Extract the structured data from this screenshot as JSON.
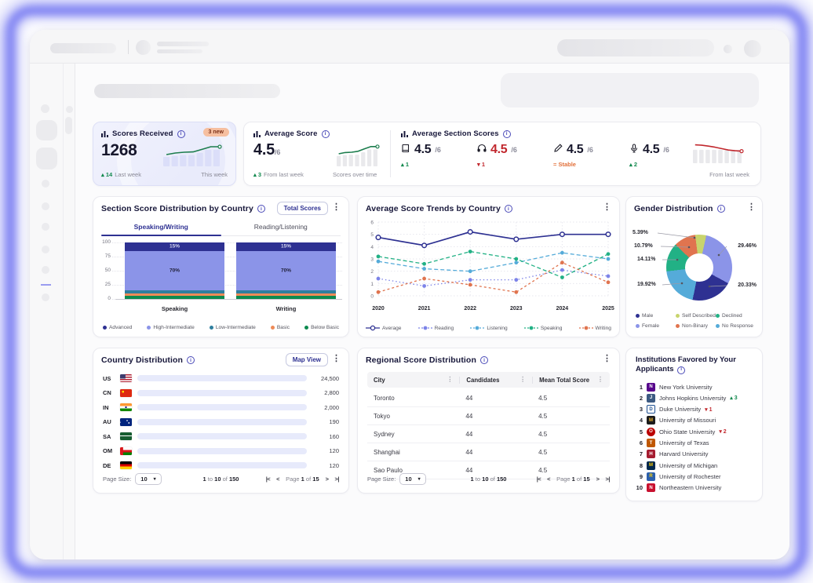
{
  "colors": {
    "navy": "#2e3192",
    "periwinkle": "#8b94e8",
    "teal": "#2f7f9e",
    "orange": "#ee8a57",
    "green": "#0d8a4f",
    "lightblue": "#55abd9",
    "emerald": "#22b185",
    "yellowgreen": "#c8d46d",
    "slice_orange": "#e0744f",
    "red": "#c1272d",
    "positive": "#12894e",
    "stable": "#e2703a",
    "spark_green": "#1c7d4d",
    "lavender_bar": "#dbdef9",
    "gray_bar": "#e9e9ec"
  },
  "stats": {
    "scores_received": {
      "title": "Scores Received",
      "badge": "3 new",
      "value": "1268",
      "delta": {
        "dir": "up",
        "value": "14"
      },
      "delta_label": "Last week",
      "spark_label": "This week",
      "spark_bars": [
        0.5,
        0.55,
        0.6,
        0.6,
        0.72,
        0.88,
        0.88
      ],
      "spark_line": [
        0.45,
        0.55,
        0.6,
        0.62,
        0.78,
        0.95,
        0.95
      ]
    },
    "average_score": {
      "title": "Average Score",
      "value": "4.5",
      "denom": "/6",
      "delta": {
        "dir": "up",
        "value": "3"
      },
      "delta_label": "From last week",
      "spark_label": "Scores over time",
      "spark_bars": [
        0.55,
        0.6,
        0.62,
        0.62,
        0.75,
        0.9,
        0.9
      ],
      "spark_line": [
        0.5,
        0.58,
        0.6,
        0.66,
        0.82,
        0.96,
        0.96
      ]
    },
    "section_scores": {
      "title": "Average Section Scores",
      "spark_label": "From last week",
      "items": [
        {
          "icon": "book-icon",
          "section": "reading",
          "value": "4.5",
          "denom": "/6",
          "highlight": false,
          "delta": {
            "dir": "up",
            "value": "1"
          }
        },
        {
          "icon": "headphones-icon",
          "section": "listening",
          "value": "4.5",
          "denom": "/6",
          "highlight": true,
          "delta": {
            "dir": "down",
            "value": "1"
          }
        },
        {
          "icon": "pencil-icon",
          "section": "writing",
          "value": "4.5",
          "denom": "/6",
          "highlight": false,
          "delta": {
            "dir": "stable",
            "value": "Stable"
          }
        },
        {
          "icon": "microphone-icon",
          "section": "speaking",
          "value": "4.5",
          "denom": "/6",
          "highlight": false,
          "delta": {
            "dir": "up",
            "value": "2"
          }
        }
      ],
      "spark_bars": [
        0.78,
        0.78,
        0.78,
        0.78,
        0.78,
        0.78,
        0.78,
        0.78
      ],
      "spark_line": [
        0.97,
        0.94,
        0.88,
        0.8,
        0.7,
        0.6,
        0.55,
        0.52
      ]
    }
  },
  "section_distribution": {
    "title": "Section Score Distribution by Country",
    "button": "Total Scores",
    "tabs": [
      {
        "label": "Speaking/Writing",
        "active": true
      },
      {
        "label": "Reading/Listening",
        "active": false
      }
    ],
    "y_ticks": [
      "100",
      "75",
      "50",
      "25",
      "0"
    ]
  },
  "score_trends": {
    "title": "Average Score Trends by Country"
  },
  "gender": {
    "title": "Gender Distribution",
    "legend_order": [
      "Male",
      "Female",
      "Self Described",
      "Non-Binary",
      "Declined",
      "No Response"
    ]
  },
  "country_distribution": {
    "title": "Country Distribution",
    "button": "Map View"
  },
  "regional_scores": {
    "title": "Regional Score Distribution"
  },
  "institutions": {
    "title": "Institutions Favored by Your Applicants",
    "items": [
      {
        "rank": "1",
        "name": "New York University",
        "logo": {
          "bg": "#57068c",
          "fg": "#ffffff",
          "text": "N"
        },
        "delta": null
      },
      {
        "rank": "2",
        "name": "Johns Hopkins University",
        "logo": {
          "bg": "#3c5a82",
          "fg": "#ffffff",
          "text": "J"
        },
        "delta": {
          "dir": "up",
          "value": "3"
        }
      },
      {
        "rank": "3",
        "name": "Duke University",
        "logo": {
          "bg": "#ffffff",
          "fg": "#1d4f91",
          "text": "D",
          "border": "#1d4f91"
        },
        "delta": {
          "dir": "down",
          "value": "1"
        }
      },
      {
        "rank": "4",
        "name": "University of Missouri",
        "logo": {
          "bg": "#1b1b1b",
          "fg": "#f1b82d",
          "text": "M"
        },
        "delta": null
      },
      {
        "rank": "5",
        "name": "Ohio State University",
        "logo": {
          "bg": "#bb0000",
          "fg": "#ffffff",
          "text": "O",
          "round": true
        },
        "delta": {
          "dir": "down",
          "value": "2"
        }
      },
      {
        "rank": "6",
        "name": "University of Texas",
        "logo": {
          "bg": "#bf5700",
          "fg": "#ffffff",
          "text": "T"
        },
        "delta": null
      },
      {
        "rank": "7",
        "name": "Harvard University",
        "logo": {
          "bg": "#a51c30",
          "fg": "#ffffff",
          "text": "H"
        },
        "delta": null
      },
      {
        "rank": "8",
        "name": "University of Michigan",
        "logo": {
          "bg": "#00274c",
          "fg": "#ffcb05",
          "text": "M"
        },
        "delta": null
      },
      {
        "rank": "9",
        "name": "University of Rochester",
        "logo": {
          "bg": "#2b5fac",
          "fg": "#ffd408",
          "text": "R"
        },
        "delta": null
      },
      {
        "rank": "10",
        "name": "Northeastern University",
        "logo": {
          "bg": "#c8102e",
          "fg": "#ffffff",
          "text": "N"
        },
        "delta": null
      }
    ]
  },
  "pagination": {
    "page_size_label": "Page Size:",
    "page_size": "10",
    "range": {
      "from": "1",
      "to_word": "to",
      "to": "10",
      "of_word": "of",
      "total": "150"
    },
    "page": {
      "word": "Page",
      "current": "1",
      "of_word": "of",
      "last": "15"
    }
  },
  "chart_data": [
    {
      "id": "section_distribution",
      "type": "bar",
      "stacked": true,
      "title": "Section Score Distribution by Country",
      "categories": [
        "Speaking",
        "Writing"
      ],
      "ylim": [
        0,
        100
      ],
      "y_ticks": [
        100,
        75,
        50,
        25,
        0
      ],
      "series": [
        {
          "name": "Below Basic",
          "color": "#0d8a4f",
          "values": [
            5,
            5
          ],
          "show_label": false
        },
        {
          "name": "Basic",
          "color": "#ee8a57",
          "values": [
            5,
            5
          ],
          "show_label": false
        },
        {
          "name": "Low-Intermediate",
          "color": "#2f7f9e",
          "values": [
            5,
            5
          ],
          "show_label": false
        },
        {
          "name": "High-Intermediate",
          "color": "#8b94e8",
          "values": [
            70,
            70
          ],
          "show_label": true,
          "label_color": "#1d1d35"
        },
        {
          "name": "Advanced",
          "color": "#2e3192",
          "values": [
            15,
            15
          ],
          "show_label": true,
          "label_color": "#d6d8f0"
        }
      ],
      "legend": [
        "Advanced",
        "High-Intermediate",
        "Low-Intermediate",
        "Basic",
        "Below Basic"
      ]
    },
    {
      "id": "score_trends",
      "type": "line",
      "title": "Average Score Trends by Country",
      "x": [
        "2020",
        "2021",
        "2022",
        "2023",
        "2024",
        "2025"
      ],
      "ylim": [
        0,
        6
      ],
      "y_ticks": [
        0,
        1,
        2,
        3,
        4,
        5,
        6
      ],
      "grid": true,
      "legend_position": "bottom",
      "series": [
        {
          "name": "Average",
          "color": "#2e3192",
          "dash": "",
          "marker": "open",
          "values": [
            4.75,
            4.1,
            5.2,
            4.6,
            5.0,
            5.0
          ]
        },
        {
          "name": "Reading",
          "color": "#7c83e8",
          "dash": "1.5 3",
          "marker": "filled",
          "values": [
            1.4,
            0.8,
            1.3,
            1.3,
            2.1,
            1.6
          ]
        },
        {
          "name": "Listening",
          "color": "#55abd9",
          "dash": "5 3",
          "marker": "filled",
          "values": [
            2.8,
            2.2,
            2.0,
            2.7,
            3.5,
            3.0
          ]
        },
        {
          "name": "Speaking",
          "color": "#22b185",
          "dash": "5 3",
          "marker": "filled",
          "values": [
            3.2,
            2.6,
            3.6,
            3.0,
            1.5,
            3.4
          ]
        },
        {
          "name": "Writing",
          "color": "#e0744f",
          "dash": "3 3",
          "marker": "filled",
          "values": [
            0.3,
            1.4,
            0.9,
            0.3,
            2.7,
            1.1
          ]
        }
      ]
    },
    {
      "id": "gender",
      "type": "pie",
      "title": "Gender Distribution",
      "donut": true,
      "start_angle": -7,
      "slices": [
        {
          "label": "Self Described",
          "pct": 5.39,
          "display": "5.39%",
          "color": "#c8d46d"
        },
        {
          "label": "Female",
          "pct": 29.46,
          "display": "29.46%",
          "color": "#8b94e8"
        },
        {
          "label": "Male",
          "pct": 20.33,
          "display": "20.33%",
          "color": "#2e3192"
        },
        {
          "label": "No Response",
          "pct": 19.92,
          "display": "19.92%",
          "color": "#55abd9"
        },
        {
          "label": "Declined",
          "pct": 14.11,
          "display": "14.11%",
          "color": "#22b185"
        },
        {
          "label": "Non-Binary",
          "pct": 10.79,
          "display": "10.79%",
          "color": "#e0744f"
        }
      ]
    },
    {
      "id": "country_distribution",
      "type": "bar",
      "orientation": "horizontal",
      "title": "Country Distribution",
      "categories": [
        "US",
        "CN",
        "IN",
        "AU",
        "SA",
        "OM",
        "DE"
      ],
      "values": [
        "24,500",
        "2,800",
        "2,000",
        "190",
        "160",
        "120",
        "120"
      ],
      "bar_pct": [
        100,
        63,
        52,
        21,
        15,
        9,
        9
      ]
    },
    {
      "id": "regional_scores",
      "type": "table",
      "title": "Regional Score Distribution",
      "columns": [
        "City",
        "Candidates",
        "Mean Total Score"
      ],
      "rows": [
        [
          "Toronto",
          "44",
          "4.5"
        ],
        [
          "Tokyo",
          "44",
          "4.5"
        ],
        [
          "Sydney",
          "44",
          "4.5"
        ],
        [
          "Shanghai",
          "44",
          "4.5"
        ],
        [
          "Sao Paulo",
          "44",
          "4.5"
        ]
      ]
    }
  ]
}
